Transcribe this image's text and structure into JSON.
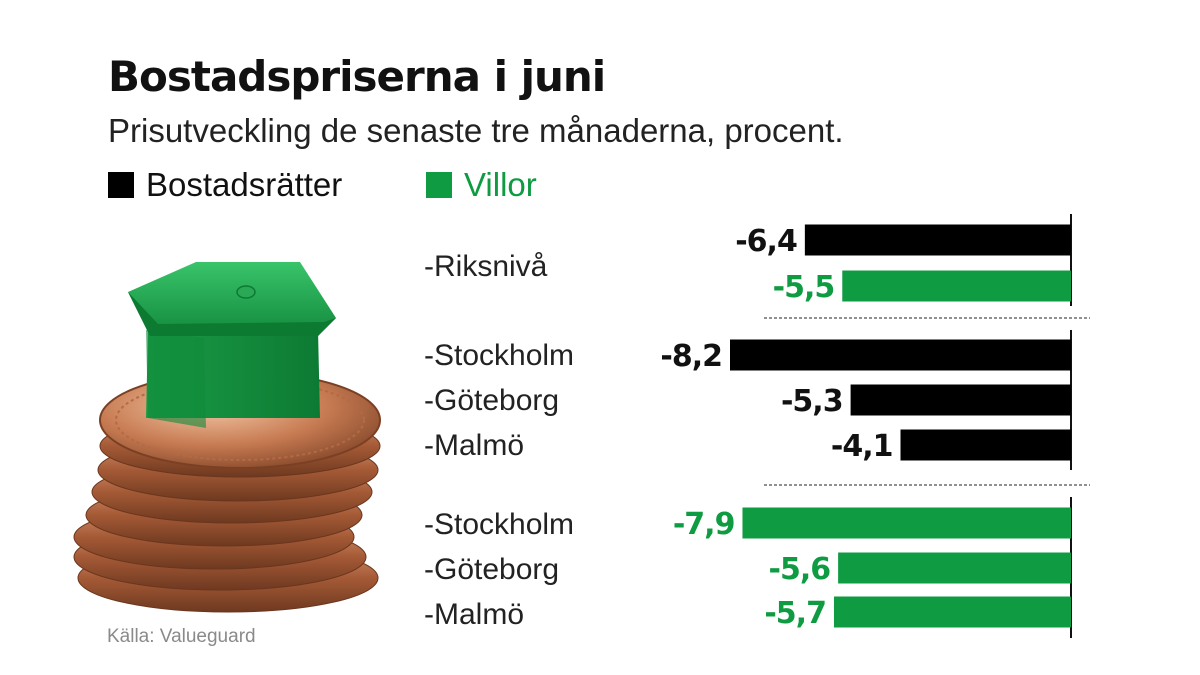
{
  "chart_data": {
    "type": "bar",
    "orientation": "horizontal",
    "title": "Bostadspriserna i juni",
    "subtitle": "Prisutveckling de senaste tre månaderna, procent.",
    "legend": [
      {
        "name": "Bostadsrätter",
        "color": "#000000"
      },
      {
        "name": "Villor",
        "color": "#0f9b41"
      }
    ],
    "groups": [
      {
        "label": "-Riksnivå",
        "bars": [
          {
            "series": "Bostadsrätter",
            "value": -6.4,
            "value_label": "-6,4"
          },
          {
            "series": "Villor",
            "value": -5.5,
            "value_label": "-5,5"
          }
        ]
      },
      {
        "bars": [
          {
            "category": "-Stockholm",
            "series": "Bostadsrätter",
            "value": -8.2,
            "value_label": "-8,2"
          },
          {
            "category": "-Göteborg",
            "series": "Bostadsrätter",
            "value": -5.3,
            "value_label": "-5,3"
          },
          {
            "category": "-Malmö",
            "series": "Bostadsrätter",
            "value": -4.1,
            "value_label": "-4,1"
          }
        ]
      },
      {
        "bars": [
          {
            "category": "-Stockholm",
            "series": "Villor",
            "value": -7.9,
            "value_label": "-7,9"
          },
          {
            "category": "-Göteborg",
            "series": "Villor",
            "value": -5.6,
            "value_label": "-5,6"
          },
          {
            "category": "-Malmö",
            "series": "Villor",
            "value": -5.7,
            "value_label": "-5,7"
          }
        ]
      }
    ],
    "xlim": [
      -8.2,
      0
    ],
    "grid": false,
    "legend_placement": "top-left"
  },
  "image": {
    "name": "house-on-coins-photo"
  },
  "source": "Källa: Valueguard"
}
